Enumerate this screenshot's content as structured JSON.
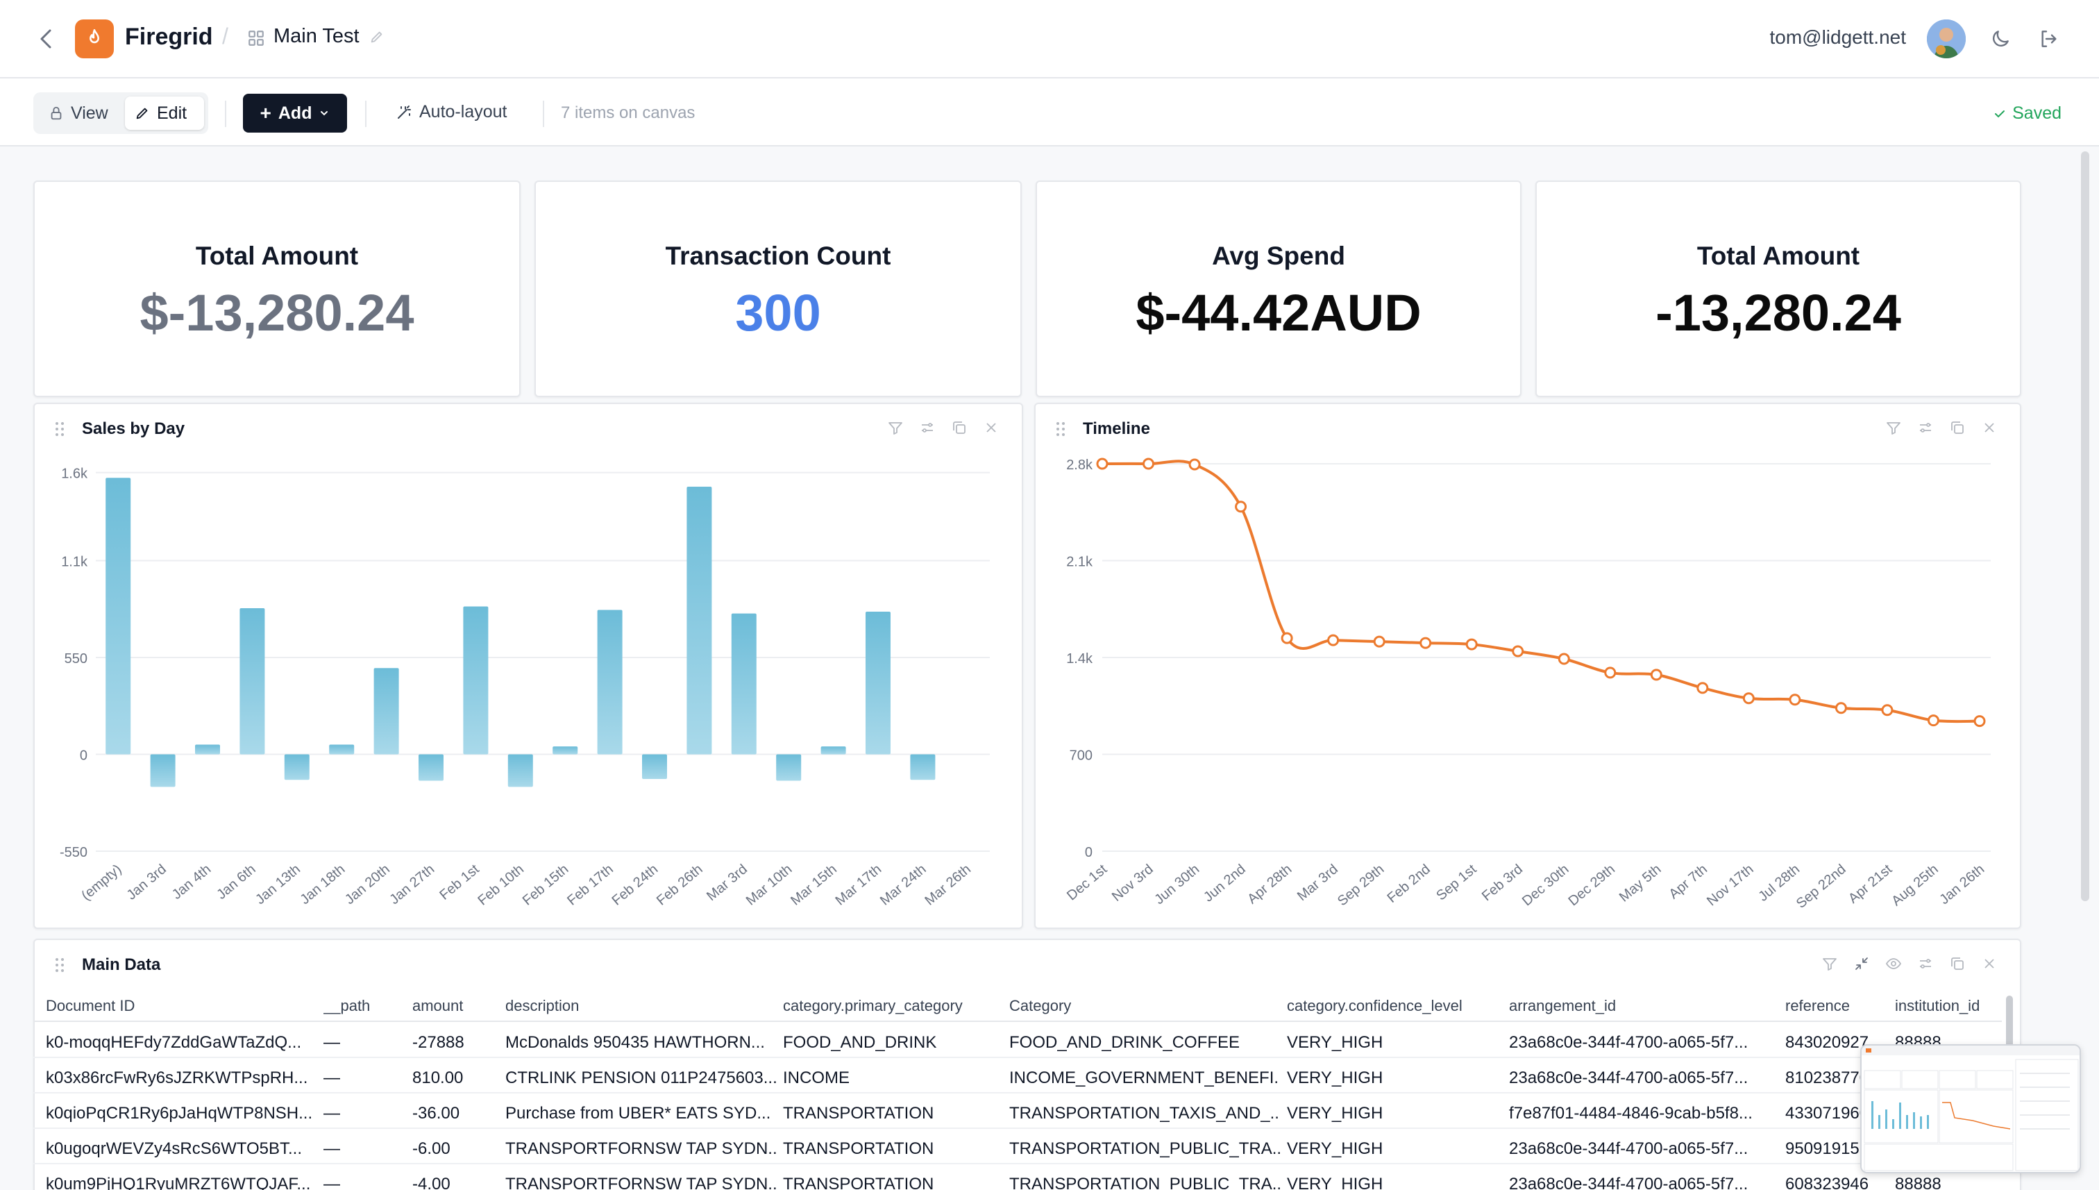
{
  "header": {
    "brand": "Firegrid",
    "separator": "/",
    "dashboard_name": "Main Test",
    "user_email": "tom@lidgett.net"
  },
  "toolbar": {
    "view_label": "View",
    "edit_label": "Edit",
    "add_label": "Add",
    "auto_layout_label": "Auto-layout",
    "items_count_text": "7 items on canvas",
    "saved_label": "Saved"
  },
  "kpis": [
    {
      "title": "Total Amount",
      "value": "$-13,280.24",
      "color": "#6b7280"
    },
    {
      "title": "Transaction Count",
      "value": "300",
      "color": "#4a80e8"
    },
    {
      "title": "Avg Spend",
      "value": "$-44.42AUD",
      "color": "#0b0b0b"
    },
    {
      "title": "Total Amount",
      "value": "-13,280.24",
      "color": "#0b0b0b"
    }
  ],
  "sales_panel": {
    "title": "Sales by Day"
  },
  "timeline_panel": {
    "title": "Timeline"
  },
  "table_panel": {
    "title": "Main Data"
  },
  "chart_data": [
    {
      "type": "bar",
      "title": "Sales by Day",
      "categories": [
        "(empty)",
        "Jan 3rd",
        "Jan 4th",
        "Jan 6th",
        "Jan 13th",
        "Jan 18th",
        "Jan 20th",
        "Jan 27th",
        "Feb 1st",
        "Feb 10th",
        "Feb 15th",
        "Feb 17th",
        "Feb 24th",
        "Feb 26th",
        "Mar 3rd",
        "Mar 10th",
        "Mar 15th",
        "Mar 17th",
        "Mar 24th",
        "Mar 26th"
      ],
      "values": [
        1570,
        -185,
        55,
        830,
        -145,
        55,
        490,
        -150,
        840,
        -185,
        45,
        820,
        -140,
        1520,
        800,
        -150,
        45,
        810,
        -145,
        0
      ],
      "yticks": [
        "1.6k",
        "1.1k",
        "550",
        "0",
        "-550"
      ],
      "ylim": [
        -550,
        1650
      ],
      "color": "#78c3dc"
    },
    {
      "type": "line",
      "title": "Timeline",
      "x": [
        "Dec 1st",
        "Nov 3rd",
        "Jun 30th",
        "Jun 2nd",
        "Apr 28th",
        "Mar 3rd",
        "Sep 29th",
        "Feb 2nd",
        "Sep 1st",
        "Feb 3rd",
        "Dec 30th",
        "Dec 29th",
        "May 5th",
        "Apr 7th",
        "Nov 17th",
        "Jul 28th",
        "Sep 22nd",
        "Apr 21st",
        "Aug 25th",
        "Jan 26th"
      ],
      "values": [
        2800,
        2800,
        2795,
        2490,
        1540,
        1525,
        1515,
        1505,
        1495,
        1445,
        1390,
        1290,
        1275,
        1180,
        1105,
        1095,
        1035,
        1020,
        945,
        940
      ],
      "yticks": [
        "2.8k",
        "2.1k",
        "1.4k",
        "700",
        "0"
      ],
      "ylim": [
        0,
        2800
      ],
      "color": "#ec7a2e"
    }
  ],
  "table": {
    "columns": [
      "Document ID",
      "__path",
      "amount",
      "description",
      "category.primary_category",
      "Category",
      "category.confidence_level",
      "arrangement_id",
      "reference",
      "institution_id"
    ],
    "rows": [
      [
        "k0-moqqHEFdy7ZddGaWTaZdQ...",
        "—",
        "-27888",
        "McDonalds 950435 HAWTHORN...",
        "FOOD_AND_DRINK",
        "FOOD_AND_DRINK_COFFEE",
        "VERY_HIGH",
        "23a68c0e-344f-4700-a065-5f7...",
        "843020927",
        "88888"
      ],
      [
        "k03x86rcFwRy6sJZRKWTPspRH...",
        "—",
        "810.00",
        "CTRLINK PENSION 011P2475603...",
        "INCOME",
        "INCOME_GOVERNMENT_BENEFI...",
        "VERY_HIGH",
        "23a68c0e-344f-4700-a065-5f7...",
        "810238770",
        ""
      ],
      [
        "k0qioPqCR1Ry6pJaHqWTP8NSH...",
        "—",
        "-36.00",
        "Purchase from UBER* EATS SYD...",
        "TRANSPORTATION",
        "TRANSPORTATION_TAXIS_AND_...",
        "VERY_HIGH",
        "f7e87f01-4484-4846-9cab-b5f8...",
        "433071960",
        ""
      ],
      [
        "k0ugoqrWEVZy4sRcS6WTO5BT...",
        "—",
        "-6.00",
        "TRANSPORTFORNSW TAP SYDN...",
        "TRANSPORTATION",
        "TRANSPORTATION_PUBLIC_TRA...",
        "VERY_HIGH",
        "23a68c0e-344f-4700-a065-5f7...",
        "950919157",
        ""
      ],
      [
        "k0um9PjHQ1RyuMRZT6WTQJAF...",
        "—",
        "-4.00",
        "TRANSPORTFORNSW TAP SYDN...",
        "TRANSPORTATION",
        "TRANSPORTATION_PUBLIC_TRA...",
        "VERY_HIGH",
        "23a68c0e-344f-4700-a065-5f7...",
        "608323946",
        "88888"
      ]
    ]
  }
}
